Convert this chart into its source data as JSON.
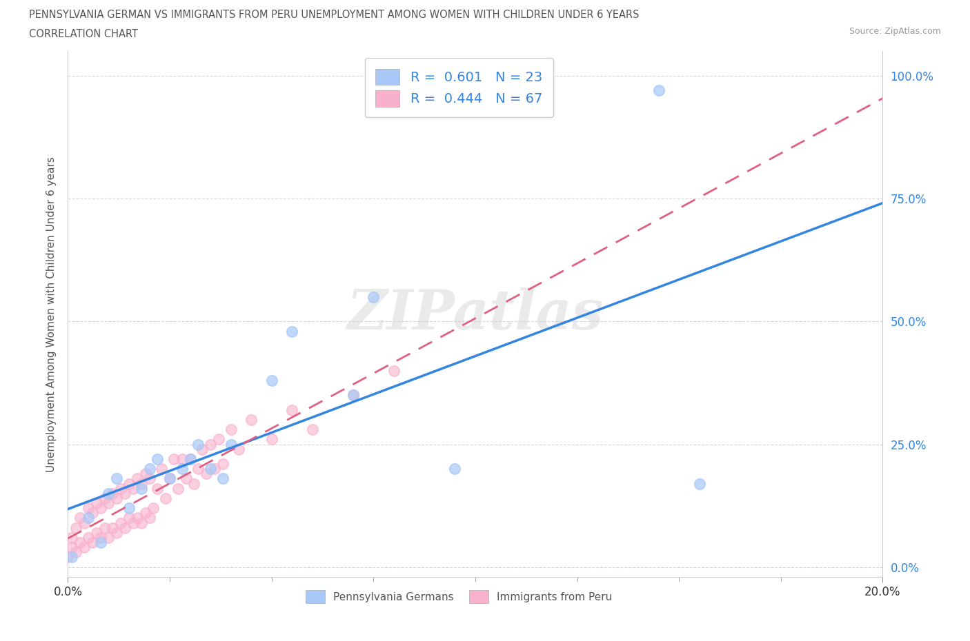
{
  "title_line1": "PENNSYLVANIA GERMAN VS IMMIGRANTS FROM PERU UNEMPLOYMENT AMONG WOMEN WITH CHILDREN UNDER 6 YEARS",
  "title_line2": "CORRELATION CHART",
  "source": "Source: ZipAtlas.com",
  "ylabel": "Unemployment Among Women with Children Under 6 years",
  "legend_labels": [
    "Pennsylvania Germans",
    "Immigrants from Peru"
  ],
  "r_values": [
    0.601,
    0.444
  ],
  "n_values": [
    23,
    67
  ],
  "blue_color": "#A8C8F8",
  "pink_color": "#F8B0CC",
  "blue_line_color": "#3385E0",
  "pink_line_color": "#E06080",
  "watermark": "ZIPatlas",
  "xlim": [
    0.0,
    0.2
  ],
  "ylim": [
    -0.02,
    1.05
  ],
  "yticks": [
    0.0,
    0.25,
    0.5,
    0.75,
    1.0
  ],
  "ytick_labels": [
    "0.0%",
    "25.0%",
    "50.0%",
    "75.0%",
    "100.0%"
  ],
  "blue_scatter_x": [
    0.001,
    0.005,
    0.008,
    0.01,
    0.012,
    0.015,
    0.018,
    0.02,
    0.022,
    0.025,
    0.028,
    0.03,
    0.032,
    0.035,
    0.038,
    0.04,
    0.05,
    0.055,
    0.07,
    0.075,
    0.095,
    0.145,
    0.155
  ],
  "blue_scatter_y": [
    0.02,
    0.1,
    0.05,
    0.15,
    0.18,
    0.12,
    0.16,
    0.2,
    0.22,
    0.18,
    0.2,
    0.22,
    0.25,
    0.2,
    0.18,
    0.25,
    0.38,
    0.48,
    0.35,
    0.55,
    0.2,
    0.97,
    0.17
  ],
  "pink_scatter_x": [
    0.0,
    0.001,
    0.001,
    0.002,
    0.002,
    0.003,
    0.003,
    0.004,
    0.004,
    0.005,
    0.005,
    0.006,
    0.006,
    0.007,
    0.007,
    0.008,
    0.008,
    0.009,
    0.009,
    0.01,
    0.01,
    0.011,
    0.011,
    0.012,
    0.012,
    0.013,
    0.013,
    0.014,
    0.014,
    0.015,
    0.015,
    0.016,
    0.016,
    0.017,
    0.017,
    0.018,
    0.018,
    0.019,
    0.019,
    0.02,
    0.02,
    0.021,
    0.022,
    0.023,
    0.024,
    0.025,
    0.026,
    0.027,
    0.028,
    0.029,
    0.03,
    0.031,
    0.032,
    0.033,
    0.034,
    0.035,
    0.036,
    0.037,
    0.038,
    0.04,
    0.042,
    0.045,
    0.05,
    0.055,
    0.06,
    0.07,
    0.08
  ],
  "pink_scatter_y": [
    0.02,
    0.04,
    0.06,
    0.03,
    0.08,
    0.05,
    0.1,
    0.04,
    0.09,
    0.06,
    0.12,
    0.05,
    0.11,
    0.07,
    0.13,
    0.06,
    0.12,
    0.08,
    0.14,
    0.06,
    0.13,
    0.08,
    0.15,
    0.07,
    0.14,
    0.09,
    0.16,
    0.08,
    0.15,
    0.1,
    0.17,
    0.09,
    0.16,
    0.1,
    0.18,
    0.09,
    0.17,
    0.11,
    0.19,
    0.1,
    0.18,
    0.12,
    0.16,
    0.2,
    0.14,
    0.18,
    0.22,
    0.16,
    0.22,
    0.18,
    0.22,
    0.17,
    0.2,
    0.24,
    0.19,
    0.25,
    0.2,
    0.26,
    0.21,
    0.28,
    0.24,
    0.3,
    0.26,
    0.32,
    0.28,
    0.35,
    0.4
  ]
}
